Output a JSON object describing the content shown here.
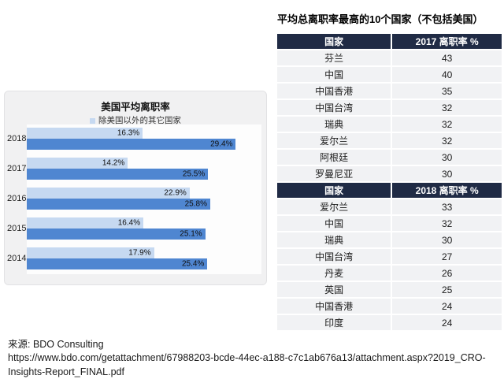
{
  "colors": {
    "header_navy": "#202b45",
    "bar_light_blue": "#c6d9f1",
    "bar_dark_blue": "#4f86d1",
    "row_gray": "#f1f2f4",
    "panel_gray": "#f1f1f2"
  },
  "source": {
    "label": "来源: BDO Consulting",
    "url_line1": "https://www.bdo.com/getattachment/67988203-bcde-44ec-a188-c7c1ab676a13/attachment.aspx?2019_CRO-",
    "url_line2": "Insights-Report_FINAL.pdf"
  },
  "chart_data": [
    {
      "type": "bar",
      "orientation": "horizontal",
      "title": "美国平均离职率",
      "categories": [
        "2018",
        "2017",
        "2016",
        "2015",
        "2014"
      ],
      "series": [
        {
          "name": "除美国以外的其它国家",
          "values": [
            16.3,
            14.2,
            22.9,
            16.4,
            17.9
          ]
        },
        {
          "name": "美国",
          "values": [
            29.4,
            25.5,
            25.8,
            25.1,
            25.4
          ]
        }
      ],
      "value_suffix": "%",
      "xlim": [
        0,
        33
      ],
      "grid": false,
      "legend_position": "top",
      "data_labels": "inside-end"
    },
    {
      "type": "table",
      "title": "平均总离职率最高的10个国家（不包括美国）",
      "sections": [
        {
          "columns": [
            "国家",
            "2017 离职率 %"
          ],
          "rows": [
            [
              "芬兰",
              43
            ],
            [
              "中国",
              40
            ],
            [
              "中国香港",
              35
            ],
            [
              "中国台湾",
              32
            ],
            [
              "瑞典",
              32
            ],
            [
              "爱尔兰",
              32
            ],
            [
              "阿根廷",
              30
            ],
            [
              "罗曼尼亚",
              30
            ]
          ]
        },
        {
          "columns": [
            "国家",
            "2018 离职率 %"
          ],
          "rows": [
            [
              "爱尔兰",
              33
            ],
            [
              "中国",
              32
            ],
            [
              "瑞典",
              30
            ],
            [
              "中国台湾",
              27
            ],
            [
              "丹麦",
              26
            ],
            [
              "英国",
              25
            ],
            [
              "中国香港",
              24
            ],
            [
              "印度",
              24
            ]
          ]
        }
      ]
    }
  ]
}
